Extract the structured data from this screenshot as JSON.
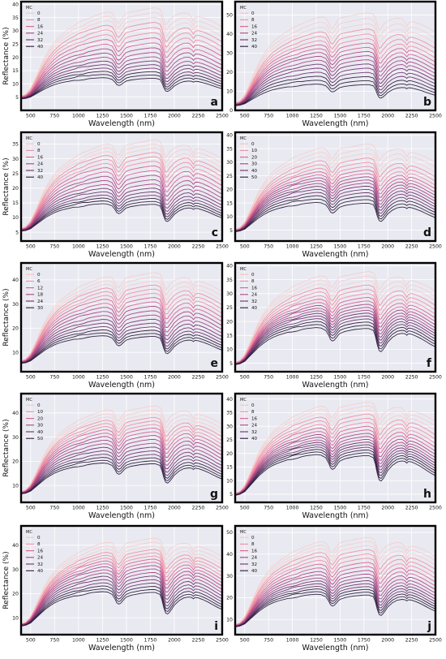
{
  "figure": {
    "ylabel": "Reflectance (%)",
    "xlabel": "Wavelength (nm)",
    "legend_title": "MC",
    "plot_bg": "#e9e9f1",
    "grid_color": "#ffffff",
    "frame_color": "#000000"
  },
  "chart_data": [
    {
      "type": "line",
      "panel_label": "a",
      "xlabel": "Wavelength (nm)",
      "ylabel": "Reflectance (%)",
      "xlim": [
        400,
        2500
      ],
      "ylim": [
        0,
        41
      ],
      "xticks": [
        500,
        750,
        1000,
        1250,
        1500,
        1750,
        2000,
        2250,
        2500
      ],
      "yticks": [
        5,
        10,
        15,
        20,
        25,
        30,
        35,
        40
      ],
      "legend_title": "MC",
      "legend_position": "top-left",
      "series_names": [
        "0",
        "8",
        "16",
        "24",
        "32",
        "40"
      ],
      "r_max": 39,
      "r_min": 14,
      "r_start": 4
    },
    {
      "type": "line",
      "panel_label": "b",
      "xlabel": "Wavelength (nm)",
      "ylabel": "",
      "xlim": [
        400,
        2500
      ],
      "ylim": [
        0,
        57
      ],
      "xticks": [
        500,
        750,
        1000,
        1250,
        1500,
        1750,
        2000,
        2250,
        2500
      ],
      "yticks": [
        0,
        10,
        20,
        30,
        40,
        50
      ],
      "legend_title": "MC",
      "legend_position": "top-left",
      "series_names": [
        "0",
        "8",
        "16",
        "24",
        "32",
        "40"
      ],
      "r_max": 52,
      "r_min": 17,
      "r_start": 2
    },
    {
      "type": "line",
      "panel_label": "c",
      "xlabel": "Wavelength (nm)",
      "ylabel": "Reflectance (%)",
      "xlim": [
        400,
        2500
      ],
      "ylim": [
        2,
        39
      ],
      "xticks": [
        500,
        750,
        1000,
        1250,
        1500,
        1750,
        2000,
        2250,
        2500
      ],
      "yticks": [
        5,
        10,
        15,
        20,
        25,
        30,
        35
      ],
      "legend_title": "MC",
      "legend_position": "top-left",
      "series_names": [
        "0",
        "8",
        "16",
        "24",
        "32",
        "40"
      ],
      "r_max": 37,
      "r_min": 17,
      "r_start": 5
    },
    {
      "type": "line",
      "panel_label": "d",
      "xlabel": "Wavelength (nm)",
      "ylabel": "",
      "xlim": [
        400,
        2500
      ],
      "ylim": [
        1,
        41
      ],
      "xticks": [
        500,
        750,
        1000,
        1250,
        1500,
        1750,
        2000,
        2250,
        2500
      ],
      "yticks": [
        5,
        10,
        15,
        20,
        25,
        30,
        35,
        40
      ],
      "legend_title": "MC",
      "legend_position": "top-left",
      "series_names": [
        "0",
        "10",
        "20",
        "30",
        "40",
        "50"
      ],
      "r_max": 37,
      "r_min": 18,
      "r_start": 4
    },
    {
      "type": "line",
      "panel_label": "e",
      "xlabel": "Wavelength (nm)",
      "ylabel": "Reflectance (%)",
      "xlim": [
        400,
        2500
      ],
      "ylim": [
        2,
        47
      ],
      "xticks": [
        500,
        750,
        1000,
        1250,
        1500,
        1750,
        2000,
        2250,
        2500
      ],
      "yticks": [
        10,
        20,
        30,
        40
      ],
      "legend_title": "MC",
      "legend_position": "top-left",
      "series_names": [
        "0",
        "6",
        "12",
        "18",
        "24",
        "30"
      ],
      "r_max": 44,
      "r_min": 20,
      "r_start": 5
    },
    {
      "type": "line",
      "panel_label": "f",
      "xlabel": "Wavelength (nm)",
      "ylabel": "",
      "xlim": [
        400,
        2500
      ],
      "ylim": [
        2,
        41
      ],
      "xticks": [
        500,
        750,
        1000,
        1250,
        1500,
        1750,
        2000,
        2250,
        2500
      ],
      "yticks": [
        5,
        10,
        15,
        20,
        25,
        30,
        35,
        40
      ],
      "legend_title": "MC",
      "legend_position": "top-left",
      "series_names": [
        "0",
        "8",
        "16",
        "24",
        "32",
        "40"
      ],
      "r_max": 38,
      "r_min": 21,
      "r_start": 4
    },
    {
      "type": "line",
      "panel_label": "g",
      "xlabel": "Wavelength (nm)",
      "ylabel": "Reflectance (%)",
      "xlim": [
        400,
        2500
      ],
      "ylim": [
        3,
        48
      ],
      "xticks": [
        500,
        750,
        1000,
        1250,
        1500,
        1750,
        2000,
        2250,
        2500
      ],
      "yticks": [
        10,
        20,
        30,
        40
      ],
      "legend_title": "MC",
      "legend_position": "top-left",
      "series_names": [
        "0",
        "10",
        "20",
        "30",
        "40",
        "50"
      ],
      "r_max": 44,
      "r_min": 23,
      "r_start": 6
    },
    {
      "type": "line",
      "panel_label": "h",
      "xlabel": "Wavelength (nm)",
      "ylabel": "",
      "xlim": [
        400,
        2500
      ],
      "ylim": [
        2,
        42
      ],
      "xticks": [
        500,
        750,
        1000,
        1250,
        1500,
        1750,
        2000,
        2250,
        2500
      ],
      "yticks": [
        5,
        10,
        15,
        20,
        25,
        30,
        35,
        40
      ],
      "legend_title": "MC",
      "legend_position": "top-left",
      "series_names": [
        "0",
        "8",
        "16",
        "24",
        "32",
        "40"
      ],
      "r_max": 39,
      "r_min": 23,
      "r_start": 4
    },
    {
      "type": "line",
      "panel_label": "i",
      "xlabel": "Wavelength (nm)",
      "ylabel": "Reflectance (%)",
      "xlim": [
        400,
        2500
      ],
      "ylim": [
        3,
        48
      ],
      "xticks": [
        500,
        750,
        1000,
        1250,
        1500,
        1750,
        2000,
        2250,
        2500
      ],
      "yticks": [
        10,
        20,
        30,
        40
      ],
      "legend_title": "MC",
      "legend_position": "top-left",
      "series_names": [
        "0",
        "8",
        "16",
        "24",
        "32",
        "40"
      ],
      "r_max": 44,
      "r_min": 25,
      "r_start": 6
    },
    {
      "type": "line",
      "panel_label": "j",
      "xlabel": "Wavelength (nm)",
      "ylabel": "",
      "xlim": [
        400,
        2500
      ],
      "ylim": [
        3,
        53
      ],
      "xticks": [
        500,
        750,
        1000,
        1250,
        1500,
        1750,
        2000,
        2250,
        2500
      ],
      "yticks": [
        10,
        20,
        30,
        40,
        50
      ],
      "legend_title": "MC",
      "legend_position": "top-left",
      "series_names": [
        "0",
        "8",
        "16",
        "24",
        "32",
        "40"
      ],
      "r_max": 48,
      "r_min": 25,
      "r_start": 6
    }
  ]
}
